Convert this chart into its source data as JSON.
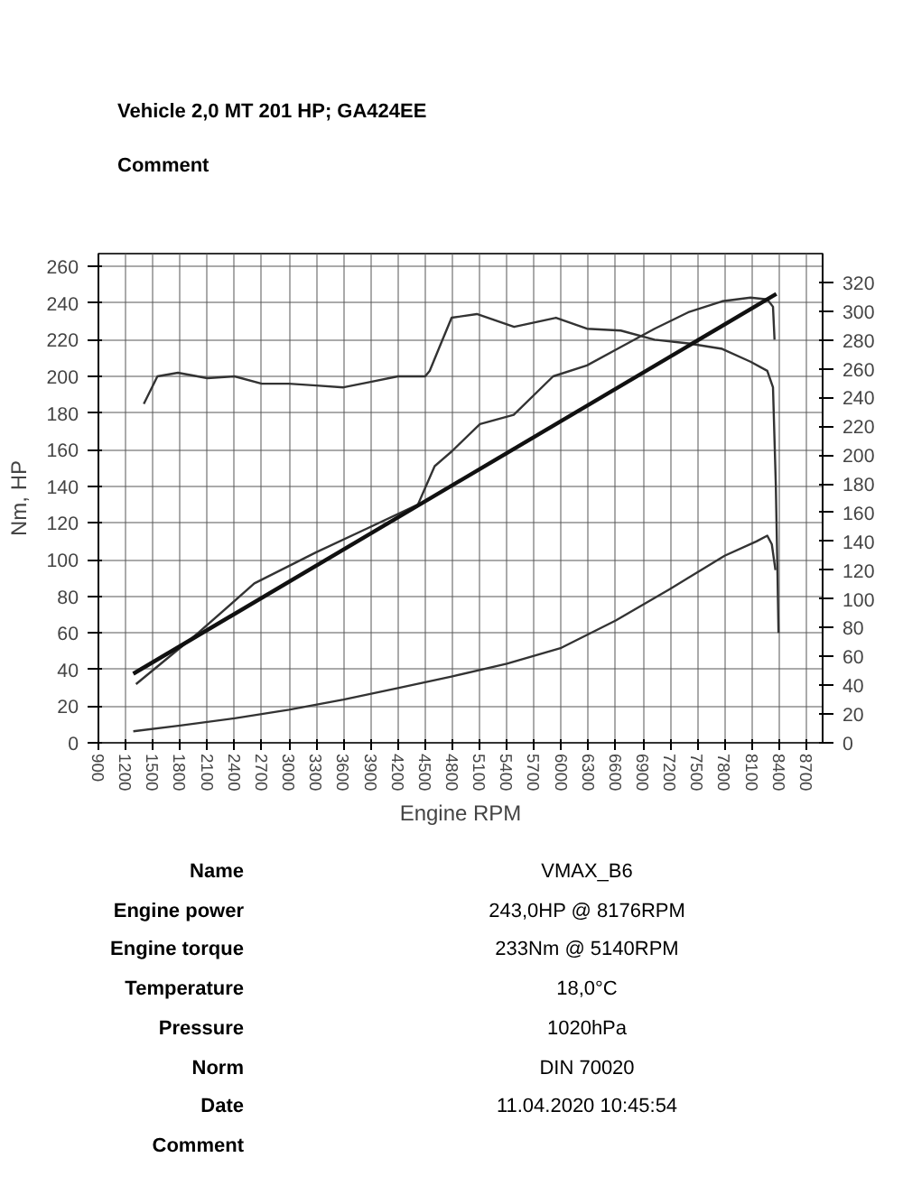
{
  "chart_data": {
    "type": "line",
    "title": "Vehicle   2,0 MT 201 HP; GA424EE",
    "subtitle": "Comment",
    "xlabel": "Engine RPM",
    "ylabel": "Nm, HP",
    "xlim": [
      900,
      8880
    ],
    "ylim": [
      0,
      267
    ],
    "y2lim": [
      0,
      340
    ],
    "xticks": [
      900,
      1200,
      1500,
      1800,
      2100,
      2400,
      2700,
      3000,
      3300,
      3600,
      3900,
      4200,
      4500,
      4800,
      5100,
      5400,
      5700,
      6000,
      6300,
      6600,
      6900,
      7200,
      7500,
      7800,
      8100,
      8400,
      8700
    ],
    "yticks": [
      0,
      20,
      40,
      60,
      80,
      100,
      120,
      140,
      160,
      180,
      200,
      220,
      240,
      260
    ],
    "y2ticks": [
      0,
      20,
      40,
      60,
      80,
      100,
      120,
      140,
      160,
      180,
      200,
      220,
      240,
      260,
      280,
      300,
      320
    ],
    "grid": true,
    "marker": "none",
    "line_style": "solid",
    "series": [
      {
        "color": "#333333",
        "x": [
          1400,
          1550,
          1776,
          2100,
          2400,
          2700,
          3000,
          3300,
          3600,
          3900,
          4200,
          4500,
          4550,
          4650,
          4792,
          5070,
          5480,
          5942,
          6283,
          6656,
          7028,
          7400,
          7773,
          8085,
          8270,
          8333,
          8364,
          8383,
          8394
        ],
        "values": [
          185,
          200,
          202,
          199,
          200,
          196,
          196,
          195,
          194,
          197,
          200,
          200,
          203,
          215,
          232,
          234,
          227,
          232,
          226,
          225,
          220,
          218,
          215,
          208,
          203,
          194,
          141,
          91,
          60
        ]
      },
      {
        "color": "#333333",
        "x": [
          1314,
          2000,
          2618,
          3300,
          3861,
          4420,
          4605,
          4792,
          5104,
          5476,
          5910,
          6283,
          6656,
          7028,
          7400,
          7773,
          8085,
          8270,
          8333,
          8350
        ],
        "values": [
          32,
          60,
          87,
          104,
          117,
          130,
          151,
          159,
          174,
          179,
          200,
          206,
          216,
          226,
          235,
          241,
          243,
          242,
          238,
          220
        ]
      },
      {
        "color": "#111111",
        "axis": "y2",
        "x": [
          1284,
          8370
        ],
        "values": [
          48,
          312
        ]
      },
      {
        "color": "#333333",
        "axis": "y2",
        "x": [
          1284,
          1800,
          2400,
          3000,
          3600,
          4200,
          4790,
          5400,
          6000,
          6600,
          7200,
          7800,
          8150,
          8270,
          8320,
          8360
        ],
        "values": [
          8,
          12,
          17,
          23,
          30,
          38,
          46,
          55,
          66,
          85,
          107,
          130,
          140,
          144,
          138,
          120
        ]
      }
    ],
    "annotations": [
      "Name",
      "VMAX_B6",
      "Engine power",
      "243,0HP @  8176RPM",
      "Engine torque",
      "233Nm @ 5140RPM",
      "Temperature",
      "18,0°C",
      "Pressure",
      "1020hPa",
      "Norm",
      "DIN 70020",
      "Date",
      "11.04.2020 10:45:54",
      "Comment"
    ]
  }
}
